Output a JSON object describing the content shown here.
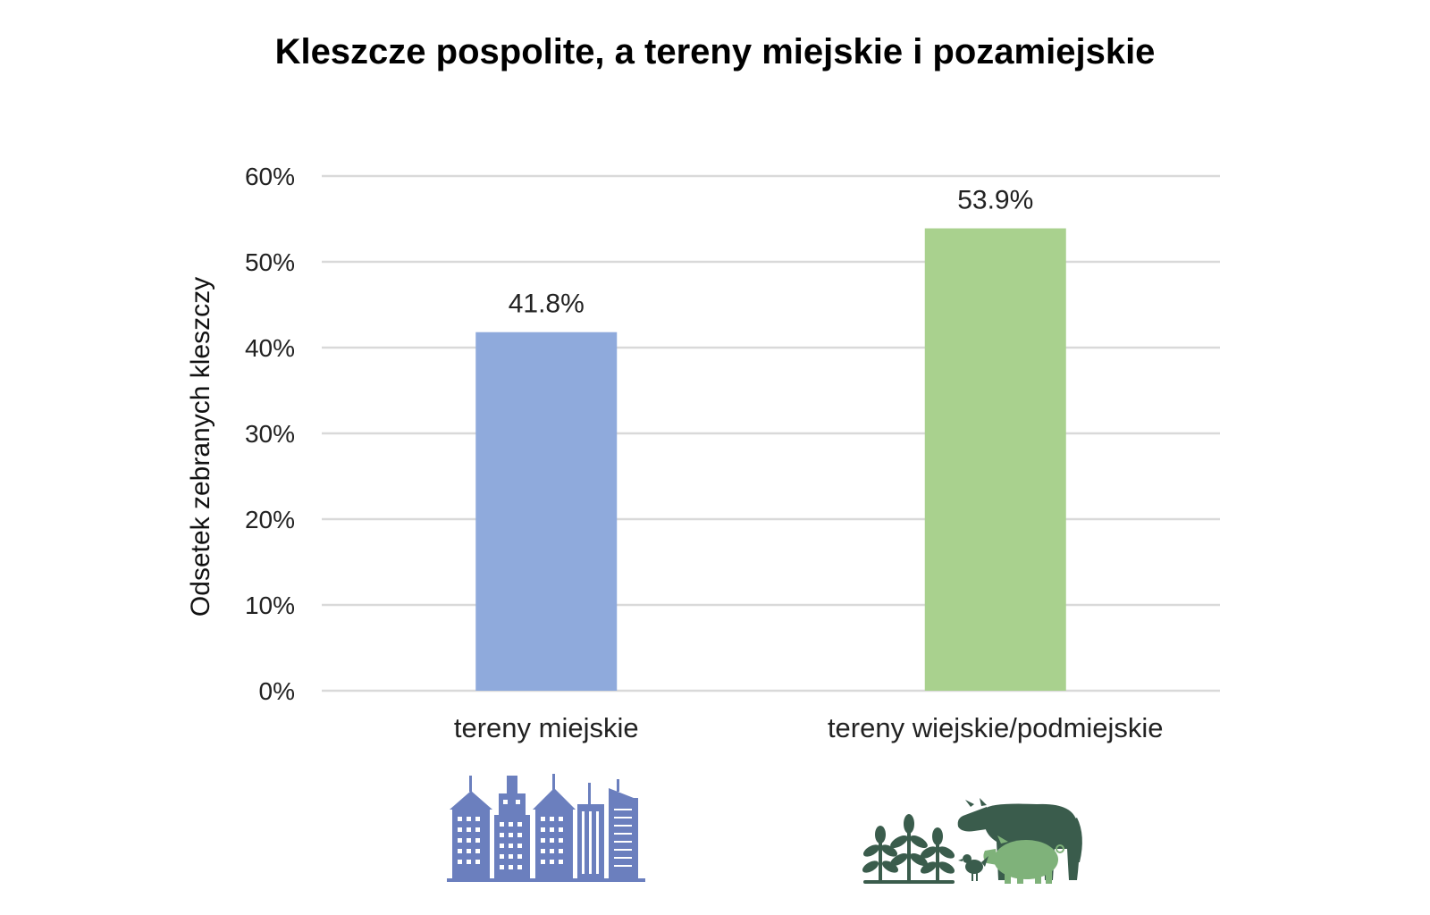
{
  "chart_data": {
    "type": "bar",
    "title": "Kleszcze pospolite, a tereny miejskie i pozamiejskie",
    "ylabel": "Odsetek  zebranych kleszczy",
    "xlabel": "",
    "categories": [
      "tereny miejskie",
      "tereny wiejskie/podmiejskie"
    ],
    "values": [
      41.8,
      53.9
    ],
    "data_labels": [
      "41.8%",
      "53.9%"
    ],
    "ylim": [
      0,
      60
    ],
    "yticks": [
      "0%",
      "10%",
      "20%",
      "30%",
      "40%",
      "50%",
      "60%"
    ],
    "grid": true,
    "legend": "none",
    "colors": [
      "#8faadc",
      "#a9d18e"
    ]
  },
  "icons": {
    "urban": "city-buildings-icon",
    "rural": "farm-animals-plants-icon",
    "urban_color": "#6b7fbe",
    "rural_dark": "#3a5c4c",
    "rural_light": "#7fb27a"
  }
}
